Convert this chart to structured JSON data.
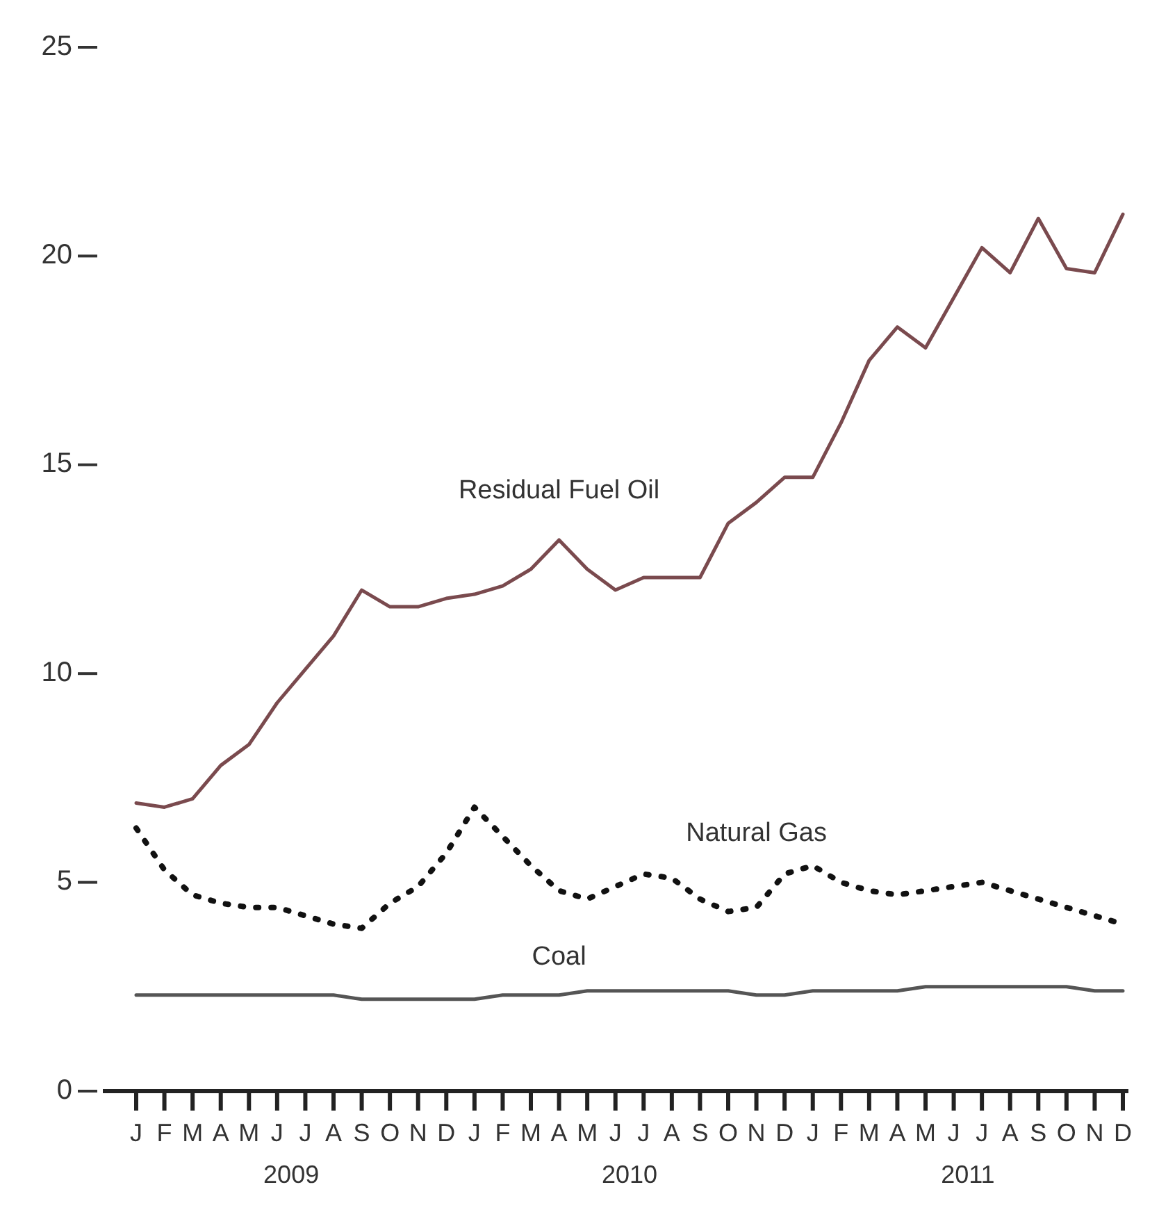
{
  "chart_data": {
    "type": "line",
    "categories": [
      "J",
      "F",
      "M",
      "A",
      "M",
      "J",
      "J",
      "A",
      "S",
      "O",
      "N",
      "D",
      "J",
      "F",
      "M",
      "A",
      "M",
      "J",
      "J",
      "A",
      "S",
      "O",
      "N",
      "D",
      "J",
      "F",
      "M",
      "A",
      "M",
      "J",
      "J",
      "A",
      "S",
      "O",
      "N",
      "D"
    ],
    "series": [
      {
        "name": "Residual Fuel Oil",
        "color": "#7a4a4e",
        "line_style": "solid",
        "values": [
          6.9,
          6.8,
          7.0,
          7.8,
          8.3,
          9.3,
          10.1,
          10.9,
          12.0,
          11.6,
          11.6,
          11.8,
          11.9,
          12.1,
          12.5,
          13.2,
          12.5,
          12.0,
          12.3,
          12.3,
          12.3,
          13.6,
          14.1,
          14.7,
          14.7,
          16.0,
          17.5,
          18.3,
          17.8,
          19.0,
          20.2,
          19.6,
          20.9,
          19.7,
          19.6,
          21.0
        ]
      },
      {
        "name": "Natural Gas",
        "color": "#111111",
        "line_style": "dotted",
        "values": [
          6.3,
          5.3,
          4.7,
          4.5,
          4.4,
          4.4,
          4.2,
          4.0,
          3.9,
          4.5,
          4.9,
          5.7,
          6.8,
          6.1,
          5.4,
          4.8,
          4.6,
          4.9,
          5.2,
          5.1,
          4.6,
          4.3,
          4.4,
          5.2,
          5.4,
          5.0,
          4.8,
          4.7,
          4.8,
          4.9,
          5.0,
          4.8,
          4.6,
          4.4,
          4.2,
          4.0
        ]
      },
      {
        "name": "Coal",
        "color": "#555555",
        "line_style": "solid",
        "values": [
          2.3,
          2.3,
          2.3,
          2.3,
          2.3,
          2.3,
          2.3,
          2.3,
          2.2,
          2.2,
          2.2,
          2.2,
          2.2,
          2.3,
          2.3,
          2.3,
          2.4,
          2.4,
          2.4,
          2.4,
          2.4,
          2.4,
          2.3,
          2.3,
          2.4,
          2.4,
          2.4,
          2.4,
          2.5,
          2.5,
          2.5,
          2.5,
          2.5,
          2.5,
          2.4,
          2.4
        ]
      }
    ],
    "ylim": [
      0,
      25
    ],
    "yticks": [
      0,
      5,
      10,
      15,
      20,
      25
    ],
    "grid": false,
    "marker": "none",
    "annotations": [
      "2009",
      "2010",
      "2011"
    ]
  }
}
